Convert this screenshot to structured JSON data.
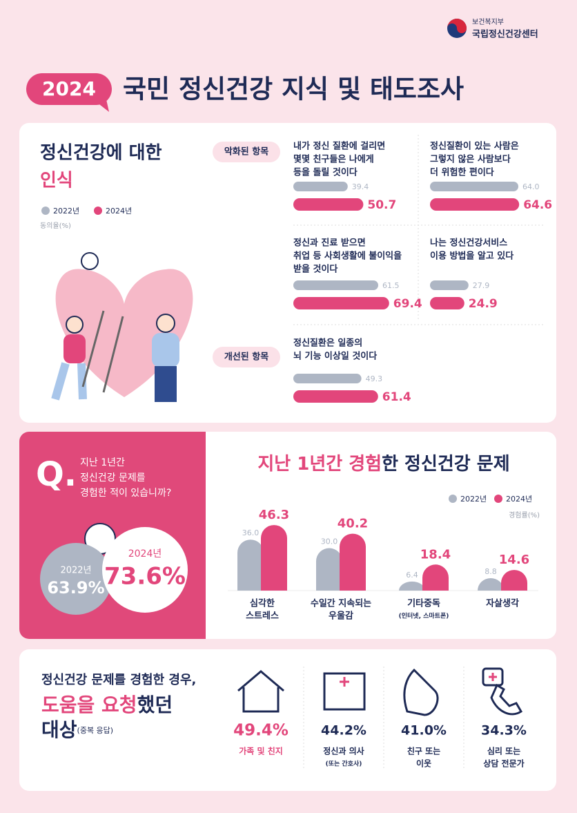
{
  "header": {
    "org_line1": "보건복지부",
    "org_line2": "국립정신건강센터",
    "year": "2024",
    "title": "국민 정신건강 지식 및 태도조사"
  },
  "perception": {
    "title_line1": "정신건강에 대한",
    "title_line2": "인식",
    "legend": [
      "2022년",
      "2024년"
    ],
    "colors": [
      "#aeb6c4",
      "#e2467b"
    ],
    "unit": "동의율(%)",
    "worsened_label": "악화된 항목",
    "improved_label": "개선된 항목",
    "items": [
      {
        "text": [
          "내가 정신 질환에 걸리면",
          "몇몇 친구들은 나에게",
          "등을 돌릴 것이다"
        ],
        "values": [
          39.4,
          50.7
        ]
      },
      {
        "text": [
          "정신질환이 있는 사람은",
          "그렇지 않은 사람보다",
          "더 위험한 편이다"
        ],
        "values": [
          64.0,
          64.6
        ],
        "value_labels": [
          "64.0",
          "64.6"
        ]
      },
      {
        "text": [
          "정신과 진료 받으면",
          "취업 등 사회생활에 불이익을",
          "받을 것이다"
        ],
        "values": [
          61.5,
          69.4
        ]
      },
      {
        "text": [
          "나는 정신건강서비스",
          "이용 방법을 알고 있다"
        ],
        "values": [
          27.9,
          24.9
        ]
      },
      {
        "text": [
          "정신질환은 일종의",
          "뇌 기능 이상일 것이다"
        ],
        "values": [
          49.3,
          61.4
        ]
      }
    ]
  },
  "question": {
    "mark": "Q.",
    "text": [
      "지난 1년간",
      "정신건강 문제를",
      "경험한 적이 있습니까?"
    ],
    "years": [
      "2022년",
      "2024년"
    ],
    "values": [
      63.9,
      73.6
    ],
    "value_labels": [
      "63.9%",
      "73.6%"
    ]
  },
  "experience": {
    "title": [
      "지난 1년간 ",
      "경험",
      "한 정신건강 문제"
    ],
    "unit": "경험률(%)",
    "categories": [
      [
        "심각한",
        "스트레스"
      ],
      [
        "수일간 지속되는",
        "우울감"
      ],
      [
        "기타중독",
        "(인터넷, 스마트폰)"
      ],
      [
        "자살생각"
      ]
    ],
    "series": [
      {
        "name": "2022년",
        "color": "#aeb6c4",
        "values": [
          36.0,
          30.0,
          6.4,
          8.8
        ],
        "value_labels": [
          "36.0",
          "30.0",
          "6.4",
          "8.8"
        ]
      },
      {
        "name": "2024년",
        "color": "#e2467b",
        "values": [
          46.3,
          40.2,
          18.4,
          14.6
        ]
      }
    ]
  },
  "help": {
    "title_line1": "정신건강 문제를 경험한 경우,",
    "title_line2": [
      "도움을 요청",
      "했던"
    ],
    "title_line3": "대상",
    "note": "(중복 응답)",
    "items": [
      {
        "value": 49.4,
        "value_label": "49.4%",
        "label": [
          "가족 및 친지"
        ]
      },
      {
        "value": 44.2,
        "value_label": "44.2%",
        "label": [
          "정신과 의사",
          "(또는 간호사)"
        ]
      },
      {
        "value": 41.0,
        "value_label": "41.0%",
        "label": [
          "친구 또는",
          "이웃"
        ]
      },
      {
        "value": 34.3,
        "value_label": "34.3%",
        "label": [
          "심리 또는",
          "상담 전문가"
        ]
      }
    ]
  }
}
